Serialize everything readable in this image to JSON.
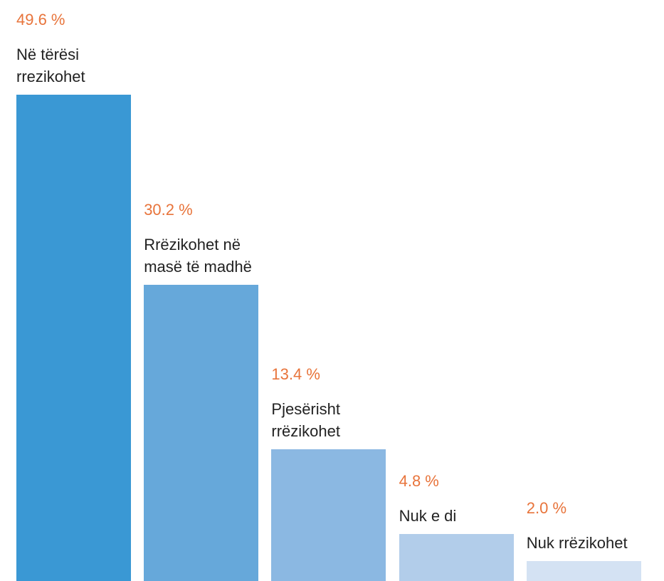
{
  "chart_data": {
    "type": "bar",
    "categories": [
      "Në tërësi rrezikohet",
      "Rrëzikohet në masë të madhë",
      "Pjesërisht rrëzikohet",
      "Nuk e di",
      "Nuk rrëzikohet"
    ],
    "values": [
      49.6,
      30.2,
      13.4,
      4.8,
      2.0
    ],
    "value_labels": [
      "49.6 %",
      "30.2 %",
      "13.4 %",
      "4.8 %",
      "2.0 %"
    ],
    "colors": [
      "#3a98d4",
      "#66a8da",
      "#8bb8e2",
      "#b2cdea",
      "#d4e2f3"
    ]
  }
}
